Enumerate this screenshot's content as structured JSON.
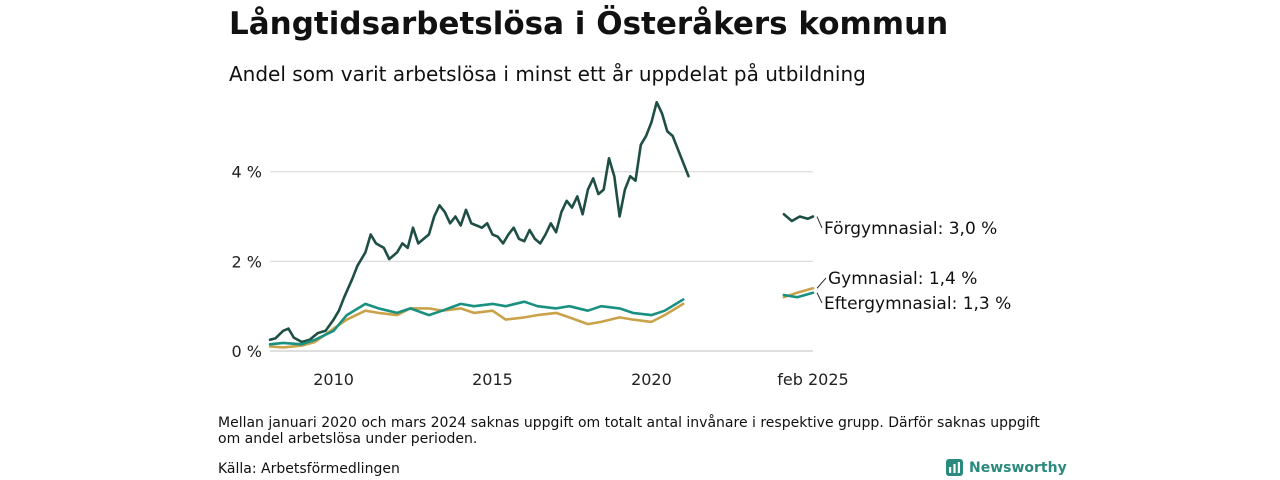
{
  "title": "Långtidsarbetslösa i Österåkers kommun",
  "subtitle": "Andel som varit arbetslösa i minst ett år uppdelat på utbildning",
  "footnote": "Mellan januari 2020 och mars 2024 saknas uppgift om totalt antal invånare i respektive grupp. Därför saknas uppgift om andel arbetslösa under perioden.",
  "source": "Källa: Arbetsförmedlingen",
  "brand": "Newsworthy",
  "colors": {
    "forgymnasial": "#1f4e45",
    "gymnasial": "#c9a24a",
    "eftergymnasial": "#1a9080",
    "grid": "#dddddd",
    "brand": "#2a8a7e"
  },
  "chart_data": {
    "type": "line",
    "x_range": [
      "2008-01",
      "2025-02"
    ],
    "ylim": [
      0,
      5.6
    ],
    "y_ticks": [
      {
        "value": 0,
        "label": "0 %"
      },
      {
        "value": 2,
        "label": "2 %"
      },
      {
        "value": 4,
        "label": "4 %"
      }
    ],
    "x_ticks": [
      {
        "value": "2010-01",
        "label": "2010"
      },
      {
        "value": "2015-01",
        "label": "2015"
      },
      {
        "value": "2020-01",
        "label": "2020"
      },
      {
        "value": "2025-02",
        "label": "feb 2025"
      }
    ],
    "grid": true,
    "series": [
      {
        "key": "forgymnasial",
        "end_label": "Förgymnasial: 3,0 %",
        "points": [
          [
            "2008-01",
            0.25
          ],
          [
            "2008-03",
            0.28
          ],
          [
            "2008-06",
            0.45
          ],
          [
            "2008-08",
            0.5
          ],
          [
            "2008-10",
            0.3
          ],
          [
            "2009-01",
            0.2
          ],
          [
            "2009-04",
            0.25
          ],
          [
            "2009-07",
            0.4
          ],
          [
            "2009-10",
            0.45
          ],
          [
            "2010-01",
            0.7
          ],
          [
            "2010-03",
            0.9
          ],
          [
            "2010-05",
            1.2
          ],
          [
            "2010-08",
            1.6
          ],
          [
            "2010-10",
            1.9
          ],
          [
            "2011-01",
            2.2
          ],
          [
            "2011-03",
            2.6
          ],
          [
            "2011-05",
            2.4
          ],
          [
            "2011-08",
            2.3
          ],
          [
            "2011-10",
            2.05
          ],
          [
            "2012-01",
            2.2
          ],
          [
            "2012-03",
            2.4
          ],
          [
            "2012-05",
            2.3
          ],
          [
            "2012-07",
            2.75
          ],
          [
            "2012-09",
            2.4
          ],
          [
            "2012-11",
            2.5
          ],
          [
            "2013-01",
            2.6
          ],
          [
            "2013-03",
            3.0
          ],
          [
            "2013-05",
            3.25
          ],
          [
            "2013-07",
            3.1
          ],
          [
            "2013-09",
            2.85
          ],
          [
            "2013-11",
            3.0
          ],
          [
            "2014-01",
            2.8
          ],
          [
            "2014-03",
            3.15
          ],
          [
            "2014-05",
            2.85
          ],
          [
            "2014-07",
            2.8
          ],
          [
            "2014-09",
            2.75
          ],
          [
            "2014-11",
            2.85
          ],
          [
            "2015-01",
            2.6
          ],
          [
            "2015-03",
            2.55
          ],
          [
            "2015-05",
            2.4
          ],
          [
            "2015-07",
            2.6
          ],
          [
            "2015-09",
            2.75
          ],
          [
            "2015-11",
            2.5
          ],
          [
            "2016-01",
            2.45
          ],
          [
            "2016-03",
            2.7
          ],
          [
            "2016-05",
            2.5
          ],
          [
            "2016-07",
            2.4
          ],
          [
            "2016-09",
            2.6
          ],
          [
            "2016-11",
            2.85
          ],
          [
            "2017-01",
            2.65
          ],
          [
            "2017-03",
            3.1
          ],
          [
            "2017-05",
            3.35
          ],
          [
            "2017-07",
            3.2
          ],
          [
            "2017-09",
            3.45
          ],
          [
            "2017-11",
            3.05
          ],
          [
            "2018-01",
            3.6
          ],
          [
            "2018-03",
            3.85
          ],
          [
            "2018-05",
            3.5
          ],
          [
            "2018-07",
            3.6
          ],
          [
            "2018-09",
            4.3
          ],
          [
            "2018-11",
            3.9
          ],
          [
            "2019-01",
            3.0
          ],
          [
            "2019-03",
            3.6
          ],
          [
            "2019-05",
            3.9
          ],
          [
            "2019-07",
            3.8
          ],
          [
            "2019-09",
            4.6
          ],
          [
            "2019-11",
            4.8
          ],
          [
            "2020-01",
            5.1
          ],
          [
            "2020-03",
            5.55
          ],
          [
            "2020-05",
            5.3
          ],
          [
            "2020-07",
            4.9
          ],
          [
            "2020-09",
            4.8
          ],
          [
            "2020-11",
            4.5
          ],
          [
            "2021-01",
            4.2
          ],
          [
            "2021-03",
            3.9
          ]
        ],
        "tail": [
          [
            "2024-03",
            3.05
          ],
          [
            "2024-06",
            2.9
          ],
          [
            "2024-09",
            3.0
          ],
          [
            "2024-12",
            2.95
          ],
          [
            "2025-02",
            3.0
          ]
        ]
      },
      {
        "key": "gymnasial",
        "end_label": "Gymnasial: 1,4 %",
        "points": [
          [
            "2008-01",
            0.1
          ],
          [
            "2008-06",
            0.08
          ],
          [
            "2009-01",
            0.12
          ],
          [
            "2009-06",
            0.2
          ],
          [
            "2010-01",
            0.5
          ],
          [
            "2010-06",
            0.7
          ],
          [
            "2011-01",
            0.9
          ],
          [
            "2011-06",
            0.85
          ],
          [
            "2012-01",
            0.8
          ],
          [
            "2012-06",
            0.95
          ],
          [
            "2013-01",
            0.95
          ],
          [
            "2013-06",
            0.9
          ],
          [
            "2014-01",
            0.95
          ],
          [
            "2014-06",
            0.85
          ],
          [
            "2015-01",
            0.9
          ],
          [
            "2015-06",
            0.7
          ],
          [
            "2016-01",
            0.75
          ],
          [
            "2016-06",
            0.8
          ],
          [
            "2017-01",
            0.85
          ],
          [
            "2017-06",
            0.75
          ],
          [
            "2018-01",
            0.6
          ],
          [
            "2018-06",
            0.65
          ],
          [
            "2019-01",
            0.75
          ],
          [
            "2019-06",
            0.7
          ],
          [
            "2020-01",
            0.65
          ],
          [
            "2020-06",
            0.8
          ],
          [
            "2021-01",
            1.05
          ]
        ],
        "tail": [
          [
            "2024-03",
            1.2
          ],
          [
            "2024-08",
            1.3
          ],
          [
            "2025-02",
            1.4
          ]
        ]
      },
      {
        "key": "eftergymnasial",
        "end_label": "Eftergymnasial: 1,3 %",
        "points": [
          [
            "2008-01",
            0.15
          ],
          [
            "2008-06",
            0.18
          ],
          [
            "2009-01",
            0.15
          ],
          [
            "2009-06",
            0.25
          ],
          [
            "2010-01",
            0.45
          ],
          [
            "2010-06",
            0.8
          ],
          [
            "2011-01",
            1.05
          ],
          [
            "2011-06",
            0.95
          ],
          [
            "2012-01",
            0.85
          ],
          [
            "2012-06",
            0.95
          ],
          [
            "2013-01",
            0.8
          ],
          [
            "2013-06",
            0.9
          ],
          [
            "2014-01",
            1.05
          ],
          [
            "2014-06",
            1.0
          ],
          [
            "2015-01",
            1.05
          ],
          [
            "2015-06",
            1.0
          ],
          [
            "2016-01",
            1.1
          ],
          [
            "2016-06",
            1.0
          ],
          [
            "2017-01",
            0.95
          ],
          [
            "2017-06",
            1.0
          ],
          [
            "2018-01",
            0.9
          ],
          [
            "2018-06",
            1.0
          ],
          [
            "2019-01",
            0.95
          ],
          [
            "2019-06",
            0.85
          ],
          [
            "2020-01",
            0.8
          ],
          [
            "2020-06",
            0.9
          ],
          [
            "2021-01",
            1.15
          ]
        ],
        "tail": [
          [
            "2024-03",
            1.25
          ],
          [
            "2024-08",
            1.2
          ],
          [
            "2025-02",
            1.3
          ]
        ]
      }
    ]
  }
}
